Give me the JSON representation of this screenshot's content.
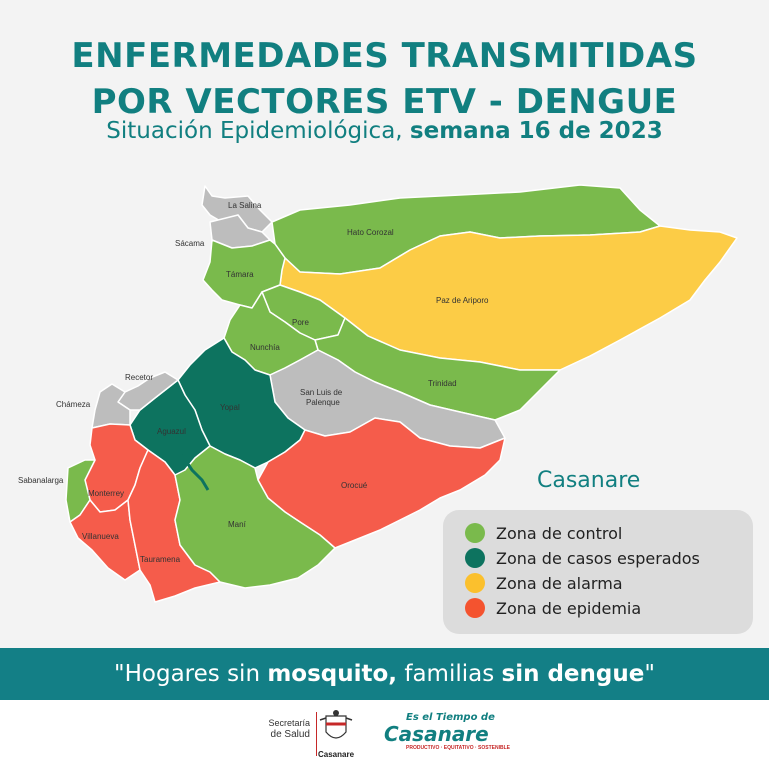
{
  "header": {
    "title_line1": "ENFERMEDADES TRANSMITIDAS",
    "title_line2": "POR VECTORES ETV - DENGUE",
    "subtitle_prefix": "Situación Epidemiológica, ",
    "subtitle_bold": "semana 16 de 2023"
  },
  "map": {
    "department": "Casanare",
    "zone_colors": {
      "control": "#7aba4c",
      "esperados": "#0d735f",
      "alarma": "#fccc46",
      "epidemia": "#f55c4b",
      "neighbor": "#bdbdbd"
    },
    "regions": {
      "la_salina": "La Salina",
      "sacama": "Sácama",
      "hato_corozal": "Hato Corozal",
      "tamara": "Támara",
      "paz_de_ariporo": "Paz de Ariporo",
      "pore": "Pore",
      "nunchia": "Nunchía",
      "recetor": "Recetor",
      "chameza": "Chámeza",
      "yopal": "Yopal",
      "san_luis_1": "San Luis de",
      "san_luis_2": "Palenque",
      "trinidad": "Trinidad",
      "aguazul": "Aguazul",
      "sabanalarga": "Sabanalarga",
      "monterrey": "Monterrey",
      "orocue": "Orocué",
      "mani": "Maní",
      "villanueva": "Villanueva",
      "tauramena": "Tauramena"
    }
  },
  "legend": {
    "items": [
      {
        "label": "Zona de control",
        "color": "#7aba4c"
      },
      {
        "label": "Zona de casos esperados",
        "color": "#0d735f"
      },
      {
        "label": "Zona de alarma",
        "color": "#fbc02d"
      },
      {
        "label": "Zona de epidemia",
        "color": "#f4532f"
      }
    ]
  },
  "slogan": {
    "p1": "\"Hogares sin ",
    "b1": "mosquito,",
    "p2": " familias ",
    "b2": "sin dengue",
    "p3": "\""
  },
  "footer": {
    "secretaria_line1": "Secretaría",
    "secretaria_line2": "de Salud",
    "crest_label": "Casanare",
    "tiempo_top": "Es el Tiempo de",
    "tiempo_main": "Casanare",
    "tiempo_tag": "PRODUCTIVO · EQUITATIVO · SOSTENIBLE"
  },
  "colors": {
    "brand_teal": "#117f80",
    "band": "#137f86"
  }
}
